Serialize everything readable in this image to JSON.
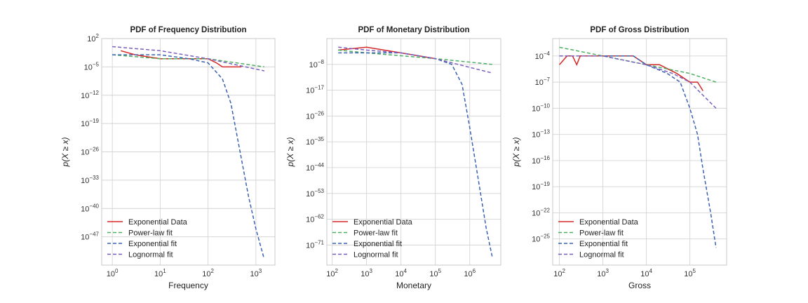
{
  "chart_data": [
    {
      "type": "line",
      "title": "PDF of Frequency Distribution",
      "xlabel": "Frequency",
      "ylabel": "p(X ≥ x)",
      "xscale": "log",
      "yscale": "log",
      "xlim": [
        0.6,
        2500
      ],
      "ylim": [
        1e-54,
        100
      ],
      "xticks": [
        {
          "v": 1,
          "m": "10",
          "e": "0"
        },
        {
          "v": 10,
          "m": "10",
          "e": "1"
        },
        {
          "v": 100,
          "m": "10",
          "e": "2"
        },
        {
          "v": 1000,
          "m": "10",
          "e": "3"
        }
      ],
      "yticks": [
        {
          "v": 100.0,
          "m": "10",
          "e": "2"
        },
        {
          "v": 1e-05,
          "m": "10",
          "e": "−5"
        },
        {
          "v": 1e-12,
          "m": "10",
          "e": "−12"
        },
        {
          "v": 1e-19,
          "m": "10",
          "e": "−19"
        },
        {
          "v": 1e-26,
          "m": "10",
          "e": "−26"
        },
        {
          "v": 1e-33,
          "m": "10",
          "e": "−33"
        },
        {
          "v": 1e-40,
          "m": "10",
          "e": "−40"
        },
        {
          "v": 1e-47,
          "m": "10",
          "e": "−47"
        }
      ],
      "grid": true,
      "legend_position": "lower-left",
      "series": [
        {
          "name": "Exponential Data",
          "color": "#d62728",
          "dashed": false,
          "x": [
            1.5,
            3,
            10,
            30,
            60,
            100,
            150,
            200,
            300,
            500
          ],
          "y": [
            0.1,
            0.01,
            0.001,
            0.001,
            0.001,
            0.001,
            0.0001,
            1e-05,
            1e-05,
            1e-05
          ]
        },
        {
          "name": "Power-law fit",
          "color": "#4daf60",
          "dashed": true,
          "x": [
            1,
            10,
            100,
            1500
          ],
          "y": [
            0.01,
            0.001,
            0.001,
            1e-05
          ]
        },
        {
          "name": "Exponential fit",
          "color": "#3a62b0",
          "dashed": true,
          "x": [
            1,
            10,
            40,
            100,
            200,
            300,
            450,
            700,
            1000,
            1450
          ],
          "y": [
            0.01,
            0.01,
            0.001,
            0.0001,
            1e-08,
            1e-14,
            1e-25,
            1e-37,
            1e-45,
            1e-52
          ]
        },
        {
          "name": "Lognormal fit",
          "color": "#7b5fbf",
          "dashed": true,
          "x": [
            1,
            10,
            100,
            1500
          ],
          "y": [
            1.0,
            0.1,
            0.001,
            1e-06
          ]
        }
      ]
    },
    {
      "type": "line",
      "title": "PDF of Monetary Distribution",
      "xlabel": "Monetary",
      "ylabel": "p(X ≥ x)",
      "xscale": "log",
      "yscale": "log",
      "xlim": [
        70,
        8000000
      ],
      "ylim": [
        1e-78,
        10.0
      ],
      "xticks": [
        {
          "v": 100.0,
          "m": "10",
          "e": "2"
        },
        {
          "v": 1000.0,
          "m": "10",
          "e": "3"
        },
        {
          "v": 10000.0,
          "m": "10",
          "e": "4"
        },
        {
          "v": 100000.0,
          "m": "10",
          "e": "5"
        },
        {
          "v": 1000000.0,
          "m": "10",
          "e": "6"
        }
      ],
      "yticks": [
        {
          "v": 1e-08,
          "m": "10",
          "e": "−8"
        },
        {
          "v": 1e-17,
          "m": "10",
          "e": "−17"
        },
        {
          "v": 1e-26,
          "m": "10",
          "e": "−26"
        },
        {
          "v": 1e-35,
          "m": "10",
          "e": "−35"
        },
        {
          "v": 1e-44,
          "m": "10",
          "e": "−44"
        },
        {
          "v": 1e-53,
          "m": "10",
          "e": "−53"
        },
        {
          "v": 1e-62,
          "m": "10",
          "e": "−62"
        },
        {
          "v": 1e-71,
          "m": "10",
          "e": "−71"
        }
      ],
      "grid": true,
      "legend_position": "lower-left",
      "series": [
        {
          "name": "Exponential Data",
          "color": "#d62728",
          "dashed": false,
          "x": [
            150,
            1000,
            10000,
            100000
          ],
          "y": [
            0.001,
            0.01,
            0.0001,
            1e-06
          ]
        },
        {
          "name": "Power-law fit",
          "color": "#4daf60",
          "dashed": true,
          "x": [
            150,
            1000,
            10000,
            100000,
            4500000
          ],
          "y": [
            0.001,
            0.0001,
            1e-05,
            1e-06,
            1e-08
          ]
        },
        {
          "name": "Exponential fit",
          "color": "#3a62b0",
          "dashed": true,
          "x": [
            150,
            10000,
            100000,
            300000,
            600000,
            1000000,
            2000000,
            3000000,
            4500000
          ],
          "y": [
            0.0001,
            0.0001,
            1e-06,
            1e-08,
            1e-15,
            1e-30,
            1e-52,
            1e-65,
            1e-75
          ]
        },
        {
          "name": "Lognormal fit",
          "color": "#7b5fbf",
          "dashed": true,
          "x": [
            150,
            1000,
            10000,
            100000,
            4500000
          ],
          "y": [
            0.01,
            0.001,
            0.0001,
            1e-06,
            1e-11
          ]
        }
      ]
    },
    {
      "type": "line",
      "title": "PDF of Gross Distribution",
      "xlabel": "Gross",
      "ylabel": "p(X ≥ x)",
      "xscale": "log",
      "yscale": "log",
      "xlim": [
        70,
        700000
      ],
      "ylim": [
        1e-28,
        0.01
      ],
      "xticks": [
        {
          "v": 100.0,
          "m": "10",
          "e": "2"
        },
        {
          "v": 1000.0,
          "m": "10",
          "e": "3"
        },
        {
          "v": 10000.0,
          "m": "10",
          "e": "4"
        },
        {
          "v": 100000.0,
          "m": "10",
          "e": "5"
        }
      ],
      "yticks": [
        {
          "v": 0.0001,
          "m": "10",
          "e": "−4"
        },
        {
          "v": 1e-07,
          "m": "10",
          "e": "−7"
        },
        {
          "v": 1e-10,
          "m": "10",
          "e": "−10"
        },
        {
          "v": 1e-13,
          "m": "10",
          "e": "−13"
        },
        {
          "v": 1e-16,
          "m": "10",
          "e": "−16"
        },
        {
          "v": 1e-19,
          "m": "10",
          "e": "−19"
        },
        {
          "v": 1e-22,
          "m": "10",
          "e": "−22"
        },
        {
          "v": 1e-25,
          "m": "10",
          "e": "−25"
        }
      ],
      "grid": true,
      "legend_position": "lower-left",
      "series": [
        {
          "name": "Exponential Data",
          "color": "#d62728",
          "dashed": false,
          "x": [
            100,
            150,
            200,
            250,
            300,
            400,
            500,
            700,
            1000,
            2000,
            5000,
            10000,
            20000,
            50000,
            100000,
            150000,
            200000
          ],
          "y": [
            1e-05,
            0.0001,
            0.0001,
            1e-05,
            0.0001,
            0.0001,
            0.0001,
            0.0001,
            0.0001,
            0.0001,
            0.0001,
            1e-05,
            1e-05,
            1e-06,
            1e-07,
            1e-07,
            1e-08
          ]
        },
        {
          "name": "Power-law fit",
          "color": "#4daf60",
          "dashed": true,
          "x": [
            100,
            1000,
            10000,
            100000,
            400000
          ],
          "y": [
            0.001,
            0.0001,
            1e-05,
            1e-06,
            1e-07
          ]
        },
        {
          "name": "Exponential fit",
          "color": "#3a62b0",
          "dashed": true,
          "x": [
            100,
            1000,
            5000,
            10000,
            30000,
            60000,
            100000,
            150000,
            200000,
            300000,
            400000
          ],
          "y": [
            0.0001,
            0.0001,
            0.0001,
            1e-05,
            1e-06,
            1e-07,
            1e-10,
            1e-13,
            1e-17,
            1e-22,
            1e-26
          ]
        },
        {
          "name": "Lognormal fit",
          "color": "#7b5fbf",
          "dashed": true,
          "x": [
            100,
            1000,
            10000,
            40000,
            100000,
            400000
          ],
          "y": [
            0.0001,
            0.0001,
            1e-05,
            1e-06,
            1e-07,
            1e-10
          ]
        }
      ]
    }
  ]
}
